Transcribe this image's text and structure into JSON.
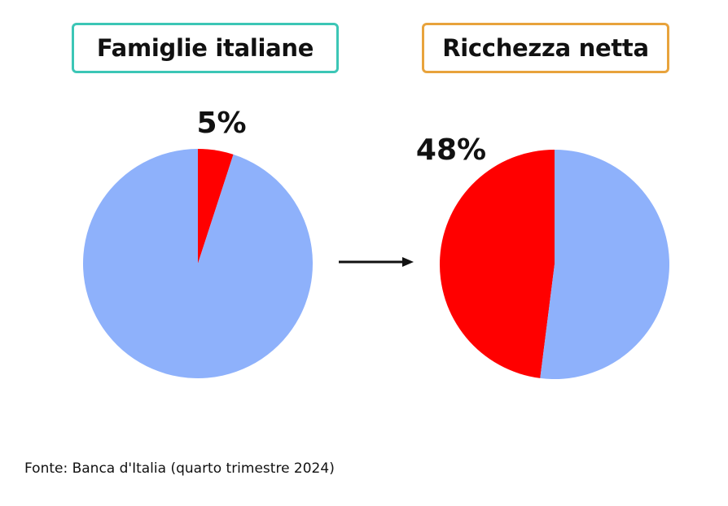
{
  "chart_data": [
    {
      "type": "pie",
      "title": "Famiglie italiane",
      "slices": [
        {
          "value": 5,
          "color": "#ff0000"
        },
        {
          "value": 95,
          "color": "#8eb1fb"
        }
      ],
      "data_label": "5%",
      "title_border_color": "#3cc6b6"
    },
    {
      "type": "pie",
      "title": "Ricchezza netta",
      "slices": [
        {
          "value": 48,
          "color": "#ff0000"
        },
        {
          "value": 52,
          "color": "#8eb1fb"
        }
      ],
      "data_label": "48%",
      "title_border_color": "#e8a33c"
    }
  ],
  "arrow_icon": "right-arrow-icon",
  "source": "Fonte: Banca d'Italia (quarto trimestre 2024)"
}
